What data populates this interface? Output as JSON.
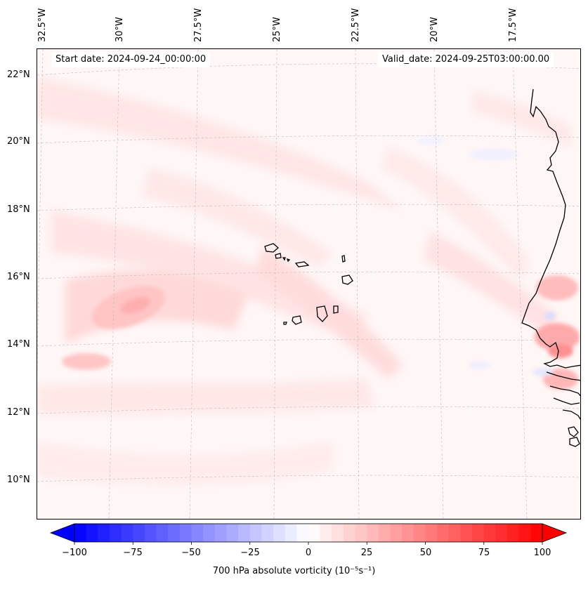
{
  "header": {
    "start_date": "Start date: 2024-09-24_00:00:00",
    "valid_date": "Valid_date: 2024-09-25T03:00:00.00"
  },
  "axes": {
    "longitude_labels": [
      "32.5°W",
      "30°W",
      "27.5°W",
      "25°W",
      "22.5°W",
      "20°W",
      "17.5°W"
    ],
    "latitude_labels": [
      "22°N",
      "20°N",
      "18°N",
      "16°N",
      "14°N",
      "12°N",
      "10°N"
    ]
  },
  "colorbar": {
    "ticks": [
      "−100",
      "−75",
      "−50",
      "−25",
      "0",
      "25",
      "50",
      "75",
      "100"
    ],
    "label": "700 hPa absolute vorticity (10⁻⁵s⁻¹)",
    "min": -100,
    "max": 100,
    "colormap": "bwr",
    "extend": "both",
    "color_low": "#0000ff",
    "color_mid": "#ffffff",
    "color_high": "#ff0000"
  },
  "map": {
    "variable": "700 hPa absolute vorticity",
    "region": "Eastern tropical Atlantic around Cape Verde and West African coast",
    "gridlines": "dashed",
    "coastline_color": "#000000"
  }
}
